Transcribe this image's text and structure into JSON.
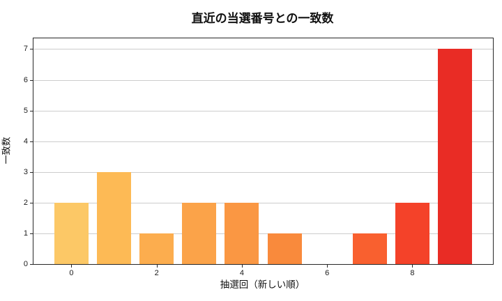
{
  "figure": {
    "background": "#ffffff"
  },
  "chart_data": {
    "type": "bar",
    "title": "直近の当選番号との一致数",
    "xlabel": "抽選回（新しい順）",
    "ylabel": "一致数",
    "categories": [
      0,
      1,
      2,
      3,
      4,
      5,
      6,
      7,
      8,
      9
    ],
    "values": [
      2,
      3,
      1,
      2,
      2,
      1,
      0,
      1,
      2,
      7
    ],
    "bar_colors": [
      "#FCC866",
      "#FDBA55",
      "#FCAD4E",
      "#FBA349",
      "#FA9743",
      "#F98A3C",
      "#F87635",
      "#F9602F",
      "#F44229",
      "#E92C25"
    ],
    "bar_width": 0.8,
    "xticks": [
      0,
      2,
      4,
      6,
      8
    ],
    "xtick_labels": [
      "0",
      "2",
      "4",
      "6",
      "8"
    ],
    "yticks": [
      0,
      1,
      2,
      3,
      4,
      5,
      6,
      7
    ],
    "ytick_labels": [
      "0",
      "1",
      "2",
      "3",
      "4",
      "5",
      "6",
      "7"
    ],
    "xlim": [
      -0.89,
      9.89
    ],
    "ylim": [
      0,
      7.35
    ],
    "grid": "horizontal",
    "grid_color": "#cccccc",
    "spine_color": "#262626",
    "legend": "none"
  }
}
